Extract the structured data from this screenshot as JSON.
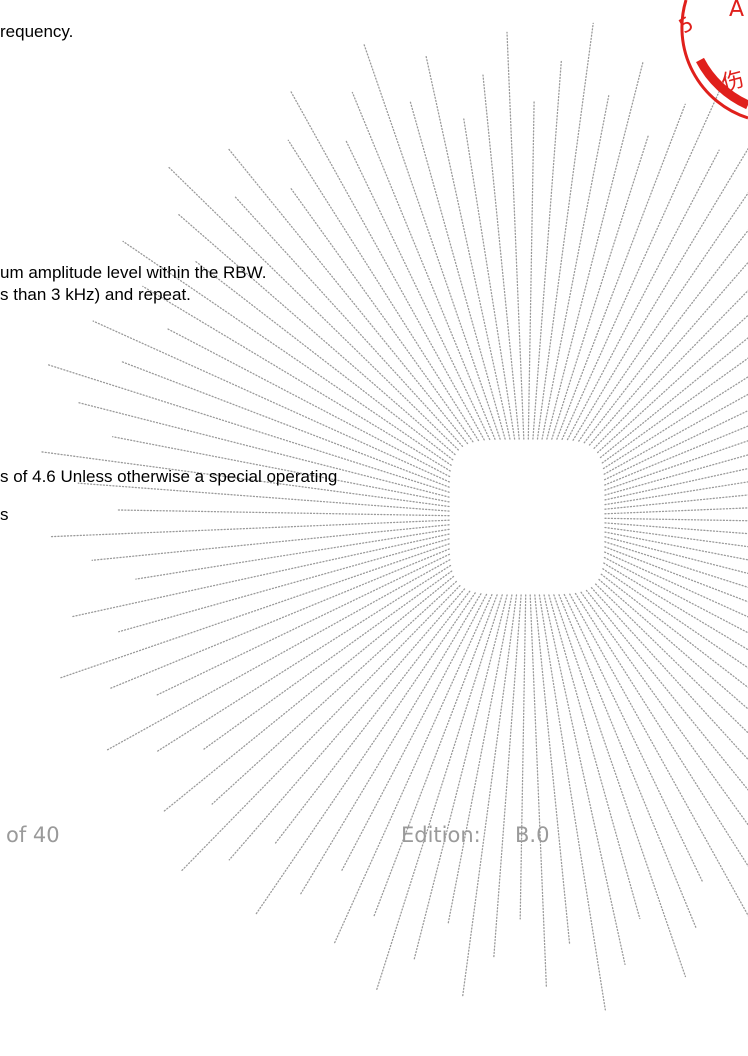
{
  "body": {
    "line1": "requency.",
    "line2": "um amplitude level within the RBW.",
    "line3": "s than 3 kHz) and repeat.",
    "line4": "s of 4.6 Unless otherwise a special operating",
    "line5": "s"
  },
  "footer": {
    "page": "of 40",
    "edition_label": "Edition:",
    "edition_value": "B.0"
  },
  "stamp": {
    "text_a": "A",
    "text_b": "5",
    "text_c": "伤",
    "color": "#e0201c"
  },
  "watermark": {
    "type": "dotted-sunburst",
    "color": "#9a9a9a"
  }
}
